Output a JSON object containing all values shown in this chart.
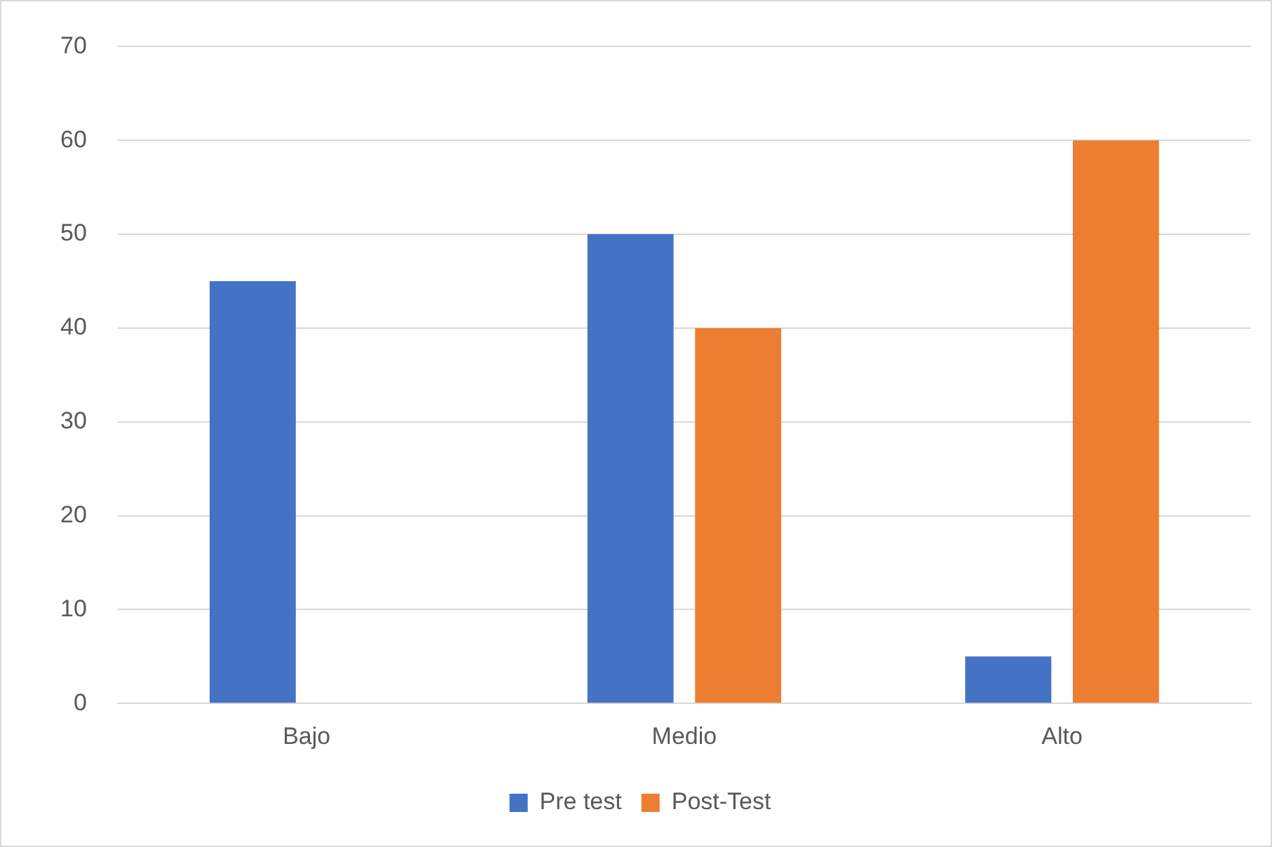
{
  "chart_data": {
    "type": "bar",
    "categories": [
      "Bajo",
      "Medio",
      "Alto"
    ],
    "series": [
      {
        "name": "Pre test",
        "color": "#4472c4",
        "values": [
          45,
          50,
          5
        ]
      },
      {
        "name": "Post-Test",
        "color": "#ed7d31",
        "values": [
          0,
          40,
          60
        ]
      }
    ],
    "ylim": [
      0,
      70
    ],
    "yticks": [
      0,
      10,
      20,
      30,
      40,
      50,
      60,
      70
    ],
    "grid": "y",
    "legend": "bottom"
  }
}
